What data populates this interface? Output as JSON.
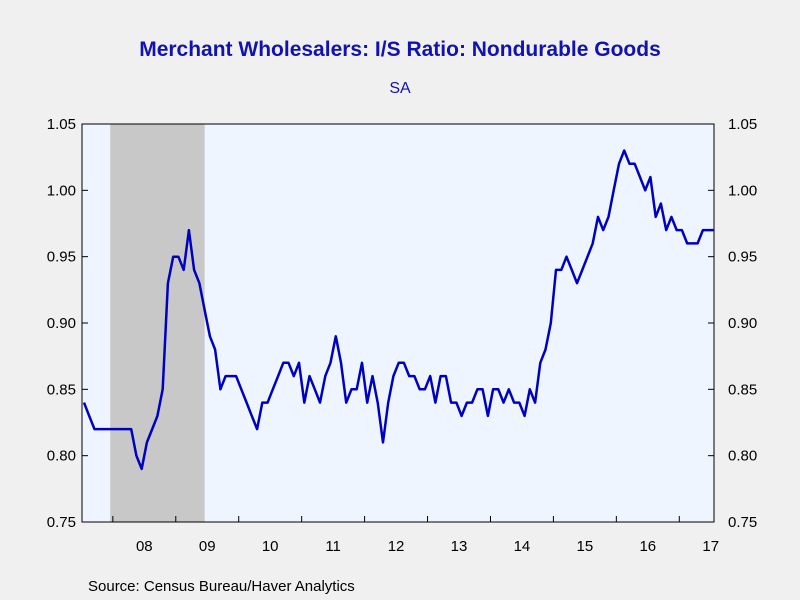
{
  "chart_data": {
    "type": "line",
    "title": "Merchant Wholesalers: I/S Ratio: Nondurable Goods",
    "subtitle": "SA",
    "source": "Source:  Census Bureau/Haver Analytics",
    "ylim": [
      0.75,
      1.05
    ],
    "yticks": [
      "0.75",
      "0.80",
      "0.85",
      "0.90",
      "0.95",
      "1.00",
      "1.05"
    ],
    "xticks": [
      "08",
      "09",
      "10",
      "11",
      "12",
      "13",
      "14",
      "15",
      "16",
      "17"
    ],
    "xstart": "2007-07",
    "recession_shade": {
      "start": "2007-12",
      "end": "2009-06"
    },
    "grid": false,
    "colors": {
      "line": "#0000c0",
      "plot_bg": "#eef5ff",
      "recession": "#c8c8c8",
      "title": "#1212b0"
    },
    "series": [
      {
        "values": [
          0.84,
          0.83,
          0.82,
          0.82,
          0.82,
          0.82,
          0.82,
          0.82,
          0.82,
          0.82,
          0.8,
          0.79,
          0.81,
          0.82,
          0.83,
          0.85,
          0.93,
          0.95,
          0.95,
          0.94,
          0.97,
          0.94,
          0.93,
          0.91,
          0.89,
          0.88,
          0.85,
          0.86,
          0.86,
          0.86,
          0.85,
          0.84,
          0.83,
          0.82,
          0.84,
          0.84,
          0.85,
          0.86,
          0.87,
          0.87,
          0.86,
          0.87,
          0.84,
          0.86,
          0.85,
          0.84,
          0.86,
          0.87,
          0.89,
          0.87,
          0.84,
          0.85,
          0.85,
          0.87,
          0.84,
          0.86,
          0.84,
          0.81,
          0.84,
          0.86,
          0.87,
          0.87,
          0.86,
          0.86,
          0.85,
          0.85,
          0.86,
          0.84,
          0.86,
          0.86,
          0.84,
          0.84,
          0.83,
          0.84,
          0.84,
          0.85,
          0.85,
          0.83,
          0.85,
          0.85,
          0.84,
          0.85,
          0.84,
          0.84,
          0.83,
          0.85,
          0.84,
          0.87,
          0.88,
          0.9,
          0.94,
          0.94,
          0.95,
          0.94,
          0.93,
          0.94,
          0.95,
          0.96,
          0.98,
          0.97,
          0.98,
          1.0,
          1.02,
          1.03,
          1.02,
          1.02,
          1.01,
          1.0,
          1.01,
          0.98,
          0.99,
          0.97,
          0.98,
          0.97,
          0.97,
          0.96,
          0.96,
          0.96,
          0.97,
          0.97,
          0.97
        ]
      }
    ]
  }
}
